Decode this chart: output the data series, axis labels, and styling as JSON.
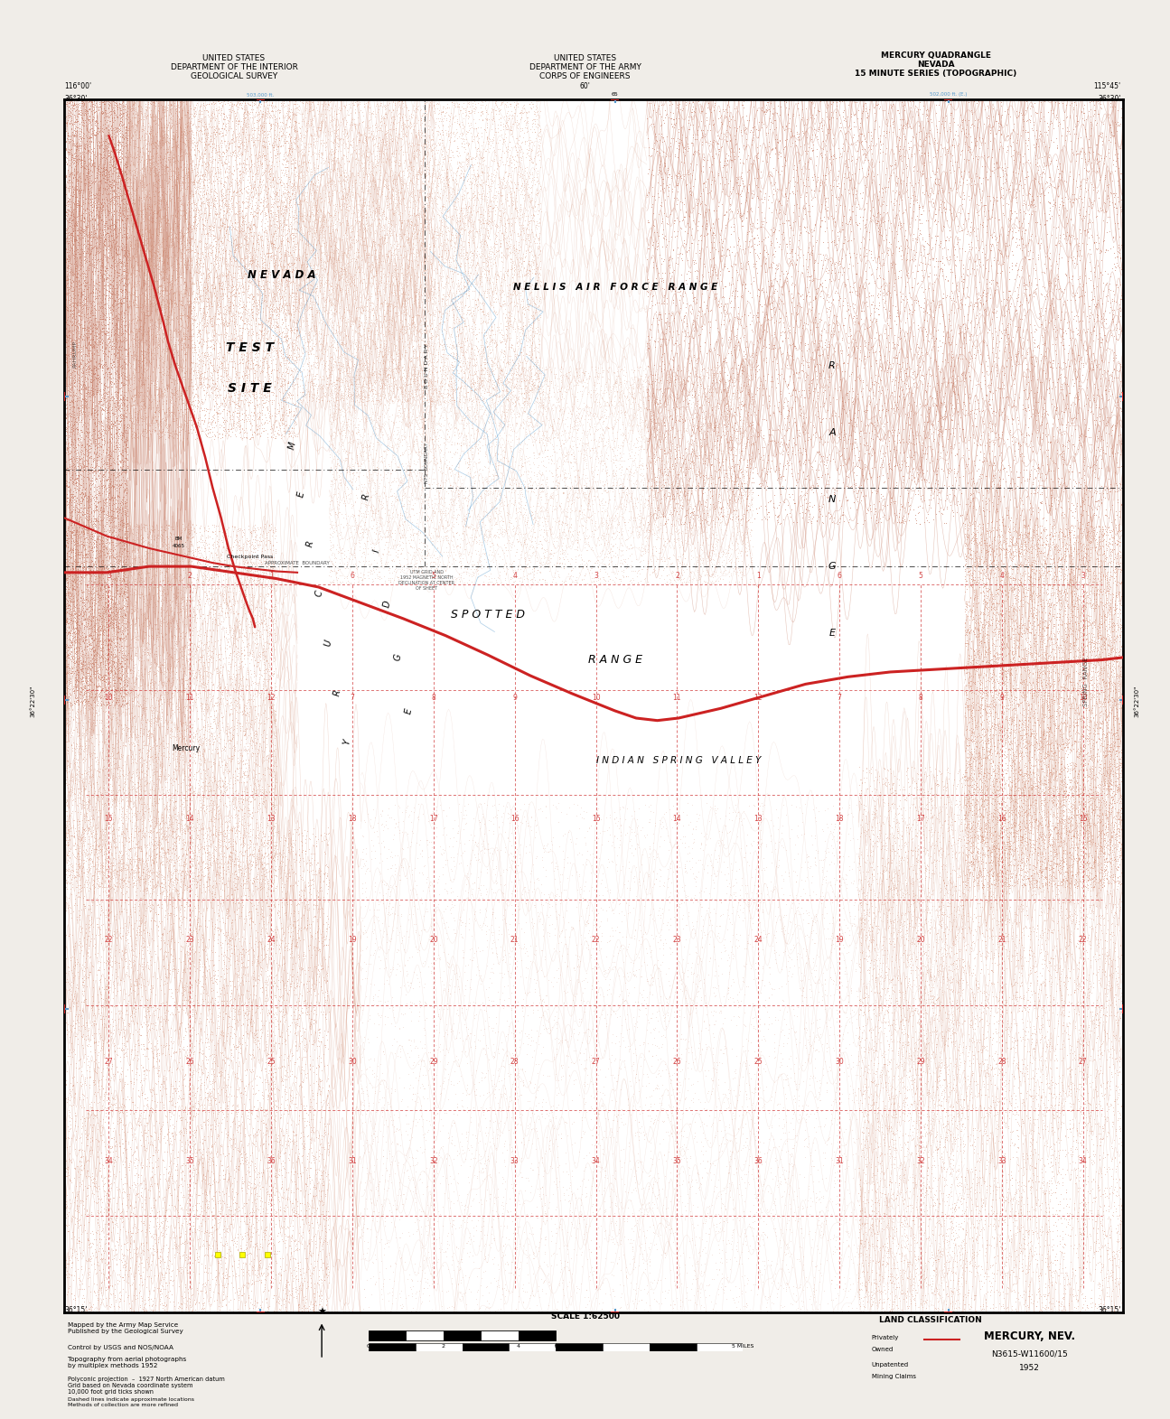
{
  "figsize": [
    12.95,
    15.71
  ],
  "dpi": 100,
  "collar_color": "#f0ede8",
  "map_bg": "#ffffff",
  "red_color": "#cc2222",
  "blue_color": "#5599cc",
  "contour_color": "#d4937a",
  "contour_light": "#e8c0a8",
  "black": "#000000",
  "top_header_left": "UNITED STATES\nDEPARTMENT OF THE INTERIOR\nGEOLOGICAL SURVEY",
  "top_header_center": "UNITED STATES\nDEPARTMENT OF THE ARMY\nCORPS OF ENGINEERS",
  "top_header_right": "MERCURY QUADRANGLE\nNEVADA\n15 MINUTE SERIES (TOPOGRAPHIC)",
  "coord_top_left": "116°00'",
  "coord_top_mid": "60'",
  "coord_top_right": "115°45'",
  "coord_lat_top": "36°30'",
  "coord_lat_mid": "36°22'30\"",
  "coord_lat_bot": "36°15'",
  "bottom_name": "MERCURY, NEV.",
  "bottom_series": "N3615-W11600/15",
  "bottom_year": "1952",
  "scale_text": "SCALE 1:62500",
  "land_class_text": "LAND CLASSIFICATION"
}
